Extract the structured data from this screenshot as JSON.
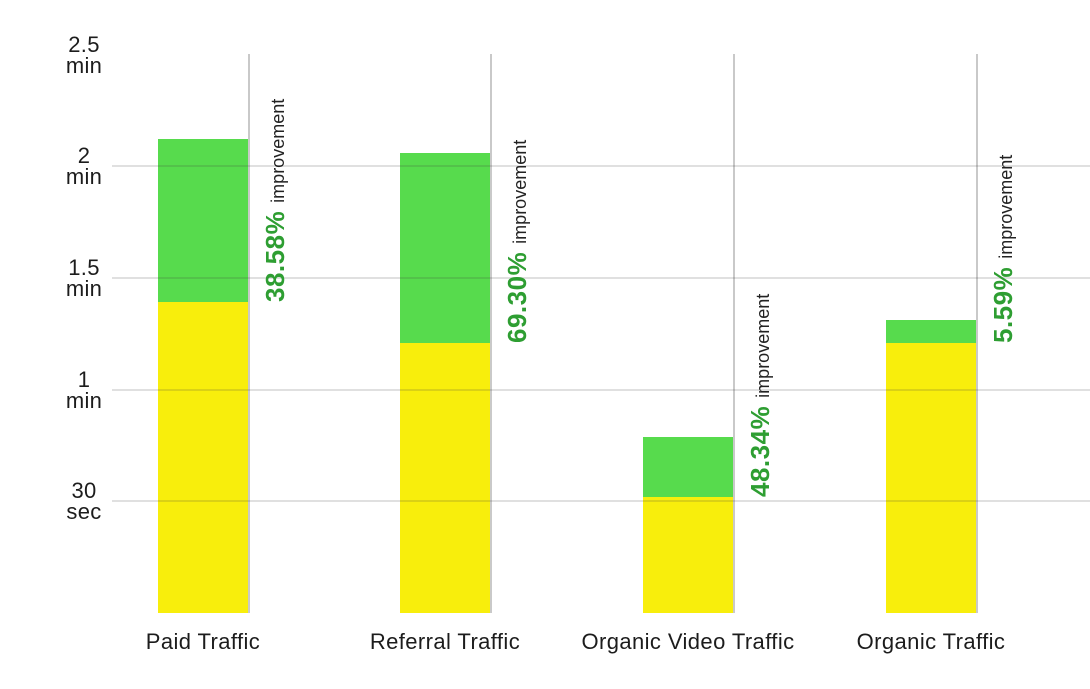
{
  "chart_data": {
    "type": "bar",
    "stacked": true,
    "title": "",
    "categories": [
      "Paid Traffic",
      "Referral Traffic",
      "Organic Video Traffic",
      "Organic Traffic"
    ],
    "series": [
      {
        "name": "base-duration-yellow",
        "color": "#F8EE0C",
        "values_min": [
          1.39,
          1.21,
          0.52,
          1.21
        ]
      },
      {
        "name": "improvement-gain-green",
        "color": "#57DB4D",
        "values_min": [
          0.73,
          0.85,
          0.27,
          0.1
        ]
      }
    ],
    "totals_min": [
      2.12,
      2.06,
      0.79,
      1.31
    ],
    "annotations": [
      {
        "value": "38.58%",
        "label": "improvement"
      },
      {
        "value": "69.30%",
        "label": "improvement"
      },
      {
        "value": "48.34%",
        "label": "improvement"
      },
      {
        "value": "5.59%",
        "label": "improvement"
      }
    ],
    "y_axis": {
      "ticks": [
        {
          "line1": "2.5",
          "line2": "min",
          "minutes": 2.5
        },
        {
          "line1": "2",
          "line2": "min",
          "minutes": 2.0
        },
        {
          "line1": "1.5",
          "line2": "min",
          "minutes": 1.5
        },
        {
          "line1": "1",
          "line2": "min",
          "minutes": 1.0
        },
        {
          "line1": "30",
          "line2": "sec",
          "minutes": 0.5
        }
      ],
      "ylim_min": [
        0,
        2.5
      ]
    },
    "gridlines": {
      "horizontal_at_min": [
        2.0,
        1.5,
        1.0,
        0.5
      ],
      "vertical_at_bar_right_edges": true
    },
    "legend": "none",
    "colors": {
      "bar_yellow": "#F8EE0C",
      "bar_green": "#57DB4D",
      "pct_text": "#2E9E32",
      "improvement_text": "#222222",
      "axis_text": "#1C1C1C",
      "grid_horizontal": "#DBDBDB",
      "grid_vertical": "#C9C9C9",
      "background": "#FFFFFF"
    }
  }
}
